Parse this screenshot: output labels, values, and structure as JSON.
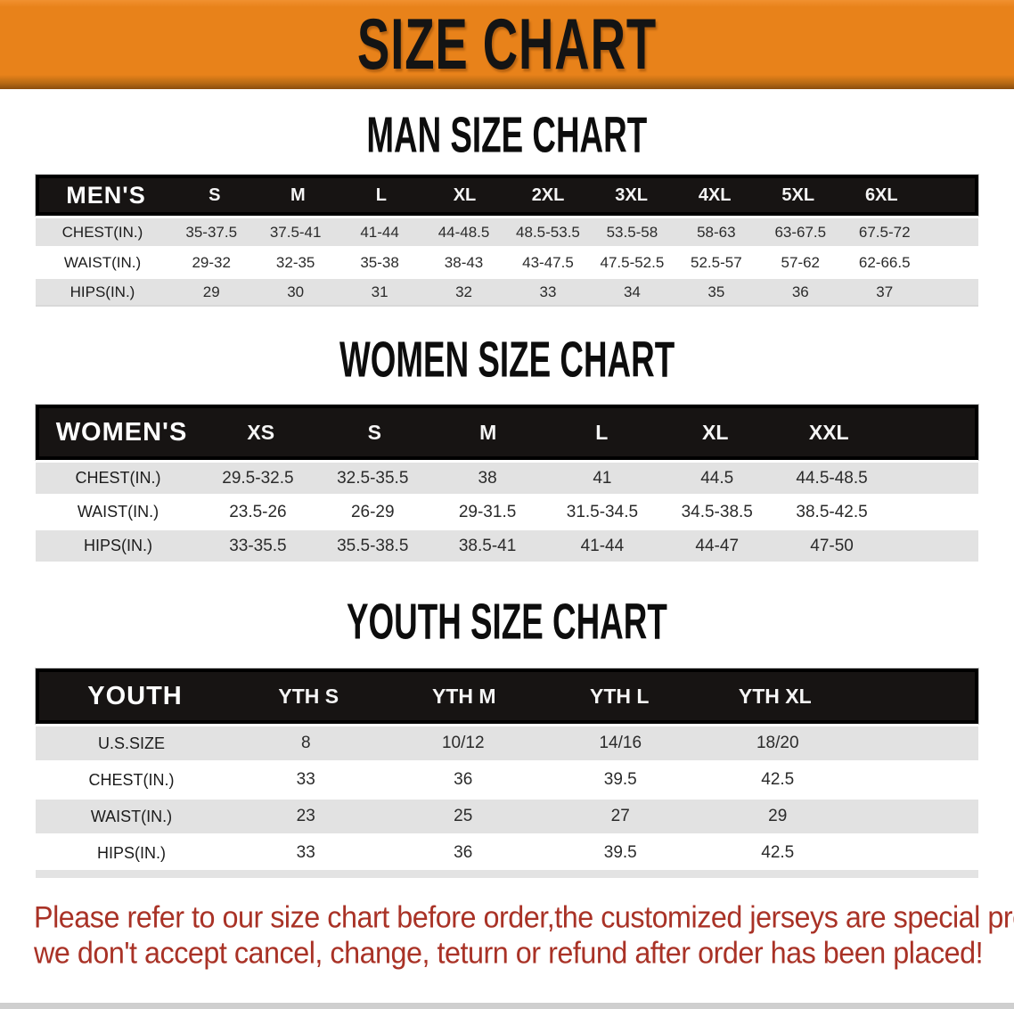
{
  "banner": {
    "title": "SIZE CHART",
    "bg_color": "#E8821A",
    "text_color": "#141414"
  },
  "sections": [
    {
      "heading": "MAN SIZE CHART",
      "header_label": "MEN'S",
      "columns": [
        "S",
        "M",
        "L",
        "XL",
        "2XL",
        "3XL",
        "4XL",
        "5XL",
        "6XL"
      ],
      "rows": [
        {
          "label": "CHEST(IN.)",
          "values": [
            "35-37.5",
            "37.5-41",
            "41-44",
            "44-48.5",
            "48.5-53.5",
            "53.5-58",
            "58-63",
            "63-67.5",
            "67.5-72"
          ]
        },
        {
          "label": "WAIST(IN.)",
          "values": [
            "29-32",
            "32-35",
            "35-38",
            "38-43",
            "43-47.5",
            "47.5-52.5",
            "52.5-57",
            "57-62",
            "62-66.5"
          ]
        },
        {
          "label": "HIPS(IN.)",
          "values": [
            "29",
            "30",
            "31",
            "32",
            "33",
            "34",
            "35",
            "36",
            "37"
          ]
        }
      ]
    },
    {
      "heading": "WOMEN SIZE CHART",
      "header_label": "WOMEN'S",
      "columns": [
        "XS",
        "S",
        "M",
        "L",
        "XL",
        "XXL"
      ],
      "rows": [
        {
          "label": "CHEST(IN.)",
          "values": [
            "29.5-32.5",
            "32.5-35.5",
            "38",
            "41",
            "44.5",
            "44.5-48.5"
          ]
        },
        {
          "label": "WAIST(IN.)",
          "values": [
            "23.5-26",
            "26-29",
            "29-31.5",
            "31.5-34.5",
            "34.5-38.5",
            "38.5-42.5"
          ]
        },
        {
          "label": "HIPS(IN.)",
          "values": [
            "33-35.5",
            "35.5-38.5",
            "38.5-41",
            "41-44",
            "44-47",
            "47-50"
          ]
        }
      ]
    },
    {
      "heading": "YOUTH SIZE CHART",
      "header_label": "YOUTH",
      "columns": [
        "YTH S",
        "YTH M",
        "YTH L",
        "YTH XL"
      ],
      "rows": [
        {
          "label": "U.S.SIZE",
          "values": [
            "8",
            "10/12",
            "14/16",
            "18/20"
          ]
        },
        {
          "label": "CHEST(IN.)",
          "values": [
            "33",
            "36",
            "39.5",
            "42.5"
          ]
        },
        {
          "label": "WAIST(IN.)",
          "values": [
            "23",
            "25",
            "27",
            "29"
          ]
        },
        {
          "label": "HIPS(IN.)",
          "values": [
            "33",
            "36",
            "39.5",
            "42.5"
          ]
        }
      ]
    }
  ],
  "disclaimer": {
    "line1": "Please refer to our size chart before order,the customized jerseys are special products,",
    "line2": "we don't accept cancel, change, teturn or refund after order has been placed!",
    "text_color": "#A93226"
  },
  "style_colors": {
    "table_header_bg": "#171413",
    "stripe_row_bg": "#E2E2E2",
    "banner_edge": "#8A4D0E"
  }
}
